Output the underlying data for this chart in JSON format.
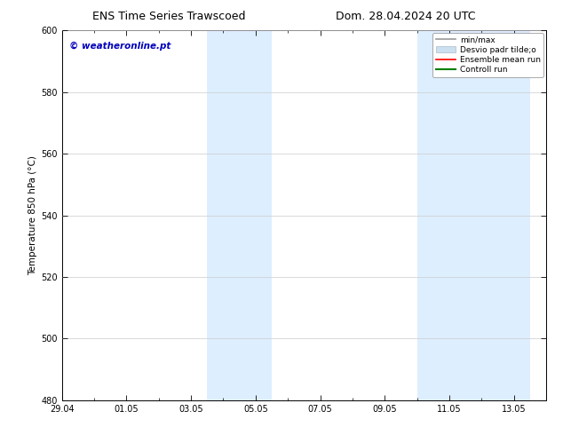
{
  "title_left": "ENS Time Series Trawscoed",
  "title_right": "Dom. 28.04.2024 20 UTC",
  "ylabel": "Temperature 850 hPa (°C)",
  "ylim": [
    480,
    600
  ],
  "yticks": [
    480,
    500,
    520,
    540,
    560,
    580,
    600
  ],
  "xtick_labels": [
    "29.04",
    "01.05",
    "03.05",
    "05.05",
    "07.05",
    "09.05",
    "11.05",
    "13.05"
  ],
  "xtick_positions": [
    0,
    2,
    4,
    6,
    8,
    10,
    12,
    14
  ],
  "xlim": [
    0,
    15
  ],
  "shaded_regions": [
    {
      "xmin": 4.5,
      "xmax": 6.5,
      "color": "#ddeeff"
    },
    {
      "xmin": 11.0,
      "xmax": 14.5,
      "color": "#ddeeff"
    }
  ],
  "watermark_text": "© weatheronline.pt",
  "watermark_color": "#0000bb",
  "legend_entries": [
    {
      "label": "min/max",
      "color": "#999999",
      "lw": 1.2
    },
    {
      "label": "Desvio padr tilde;o",
      "color": "#cce0f0",
      "lw": 7
    },
    {
      "label": "Ensemble mean run",
      "color": "red",
      "lw": 1.2
    },
    {
      "label": "Controll run",
      "color": "green",
      "lw": 1.5
    }
  ],
  "bg_color": "#ffffff",
  "grid_color": "#cccccc",
  "title_fontsize": 9,
  "axis_fontsize": 7.5,
  "tick_fontsize": 7,
  "legend_fontsize": 6.5,
  "watermark_fontsize": 7.5
}
